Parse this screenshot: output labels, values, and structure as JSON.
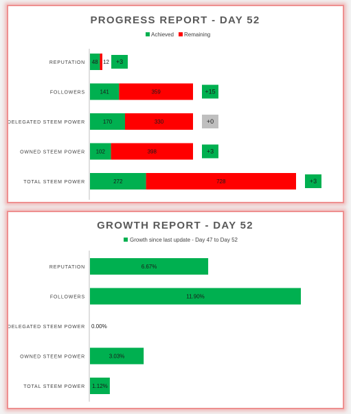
{
  "chart_data": [
    {
      "type": "bar",
      "orientation": "horizontal",
      "stacked": true,
      "title": "PROGRESS REPORT - DAY 52",
      "categories": [
        "REPUTATION",
        "FOLLOWERS",
        "DELEGATED STEEM POWER",
        "OWNED STEEM POWER",
        "TOTAL STEEM POWER"
      ],
      "series": [
        {
          "name": "Achieved",
          "color": "#00b050",
          "values": [
            48,
            141,
            170,
            102,
            272
          ]
        },
        {
          "name": "Remaining",
          "color": "#ff0000",
          "values": [
            12,
            359,
            330,
            398,
            728
          ]
        }
      ],
      "deltas": [
        "+3",
        "+15",
        "+0",
        "+3",
        "+3"
      ],
      "delta_colors": [
        "#00b050",
        "#00b050",
        "#bfbfbf",
        "#00b050",
        "#00b050"
      ],
      "legend": "top",
      "grid": false
    },
    {
      "type": "bar",
      "orientation": "horizontal",
      "title": "GROWTH REPORT - DAY 52",
      "categories": [
        "REPUTATION",
        "FOLLOWERS",
        "DELEGATED STEEM POWER",
        "OWNED STEEM POWER",
        "TOTAL STEEM POWER"
      ],
      "series": [
        {
          "name": "Growth since last update - Day 47 to Day 52",
          "color": "#00b050",
          "values": [
            6.67,
            11.9,
            0.0,
            3.03,
            1.12
          ]
        }
      ],
      "labels": [
        "6.67%",
        "11.90%",
        "0.00%",
        "3.03%",
        "1.12%"
      ],
      "legend": "top",
      "grid": false
    }
  ]
}
